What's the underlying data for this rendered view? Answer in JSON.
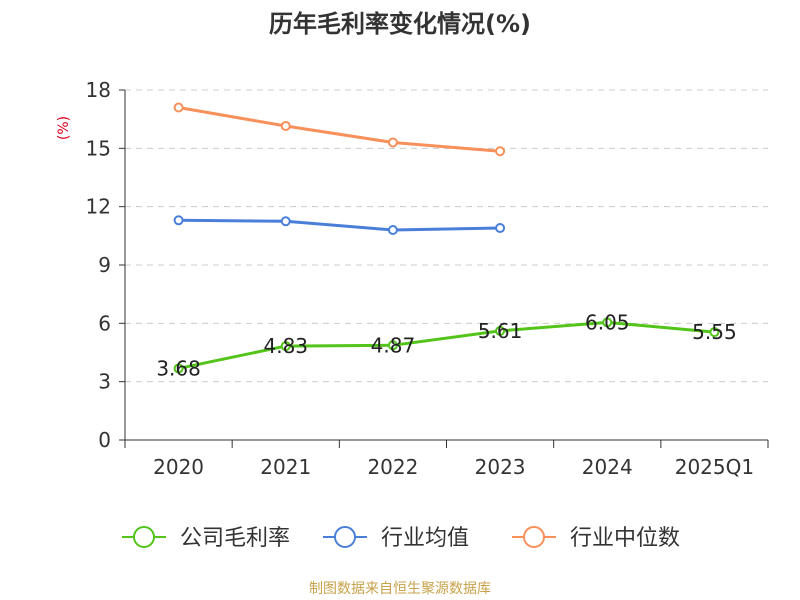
{
  "source_text": "制图数据来自恒生聚源数据库",
  "chart_data": {
    "type": "line",
    "title": "历年毛利率变化情况(%)",
    "ylabel": "(%)",
    "xlabel": "",
    "ylim": [
      0,
      18
    ],
    "yticks": [
      0,
      3,
      6,
      9,
      12,
      15,
      18
    ],
    "grid": true,
    "legend_position": "bottom",
    "categories": [
      "2020",
      "2021",
      "2022",
      "2023",
      "2024",
      "2025Q1"
    ],
    "series": [
      {
        "name": "公司毛利率",
        "color": "#52c41a",
        "values": [
          3.68,
          4.83,
          4.87,
          5.61,
          6.05,
          5.55
        ],
        "labels": [
          "3.68",
          "4.83",
          "4.87",
          "5.61",
          "6.05",
          "5.55"
        ]
      },
      {
        "name": "行业均值",
        "color": "#4a7fd9",
        "values": [
          11.3,
          11.25,
          10.8,
          10.9,
          null,
          null
        ]
      },
      {
        "name": "行业中位数",
        "color": "#f7905a",
        "values": [
          17.1,
          16.15,
          15.3,
          14.85,
          null,
          null
        ]
      }
    ],
    "colors": {
      "axis": "#333333",
      "grid": "#cccccc",
      "ylabel": "#d9001b",
      "title": "#333333"
    }
  }
}
